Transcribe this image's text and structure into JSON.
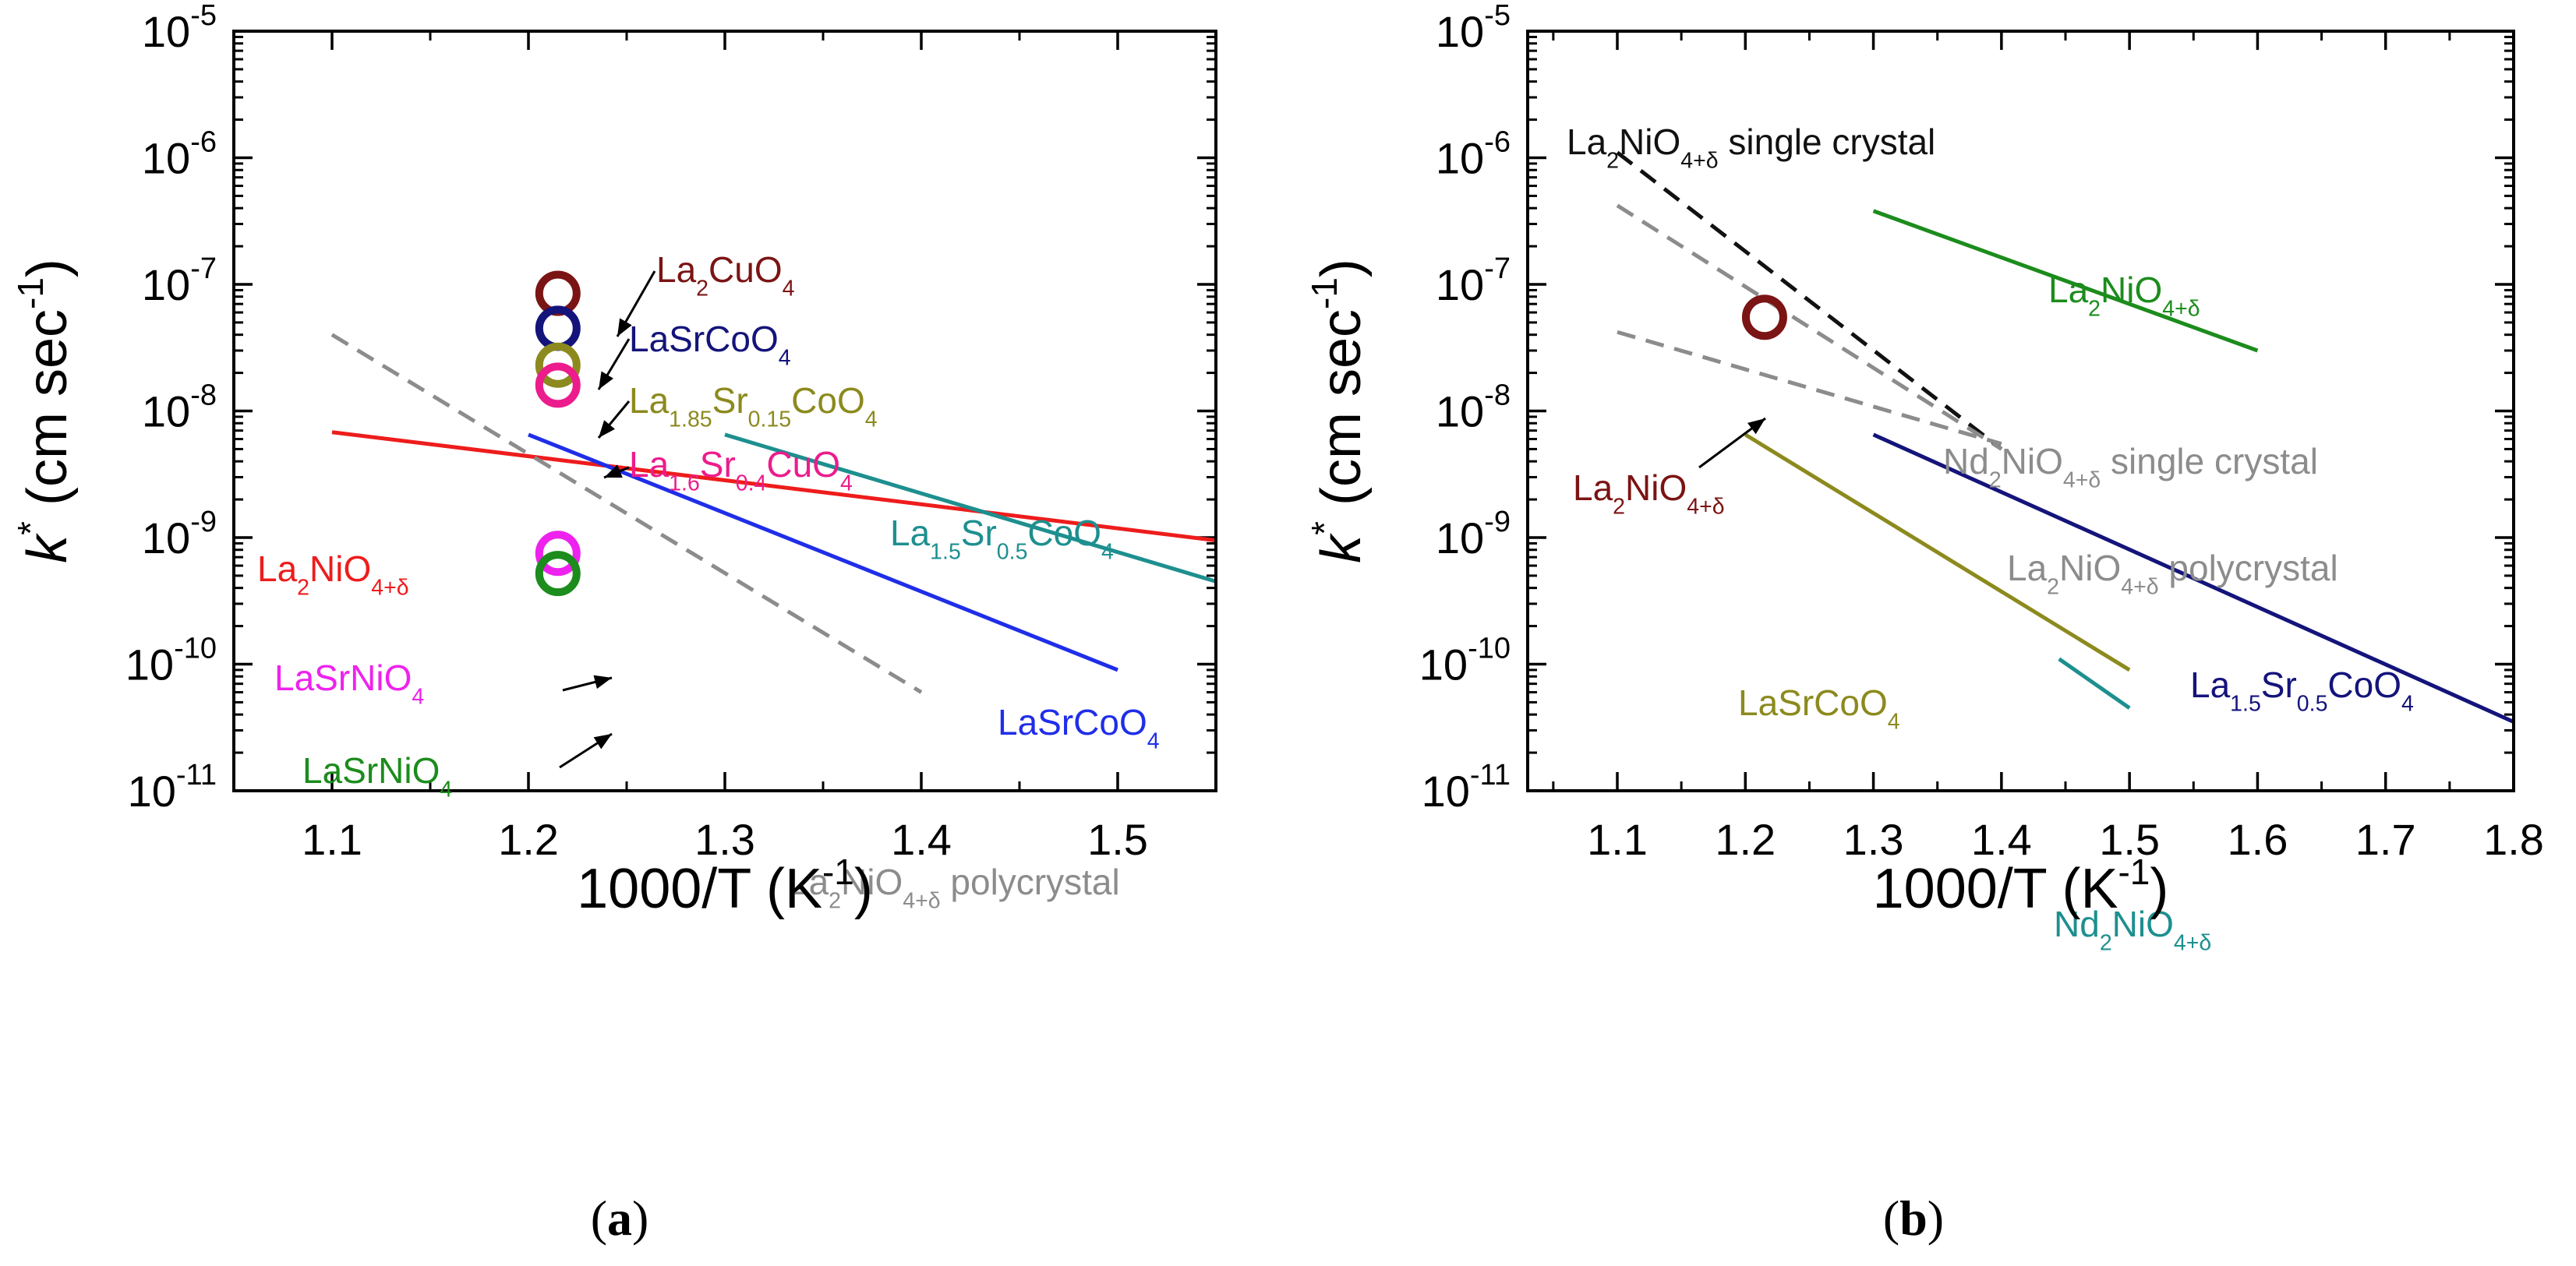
{
  "chart_data": [
    {
      "panel": "a",
      "type": "line",
      "caption": "(a)",
      "caption_open": "(",
      "caption_letter": "a",
      "caption_close": ")",
      "xlabel": "1000/T (K",
      "xlabel_exp": "-1",
      "xlabel_close": ")",
      "ylabel": "k",
      "ylabel_star": "*",
      "ylabel_unit": " (cm sec",
      "ylabel_exp": "-1",
      "ylabel_close": ")",
      "xlim": [
        1.05,
        1.55
      ],
      "ylim_log10": [
        -11,
        -5
      ],
      "xticks": [
        1.1,
        1.2,
        1.3,
        1.4,
        1.5
      ],
      "xtick_labels": [
        "1.1",
        "1.2",
        "1.3",
        "1.4",
        "1.5"
      ],
      "yticks_exp": [
        -11,
        -10,
        -9,
        -8,
        -7,
        -6,
        -5
      ],
      "ytick_base": "10",
      "ytick_exp_labels": [
        "-11",
        "-10",
        "-9",
        "-8",
        "-7",
        "-6",
        "-5"
      ],
      "lines": [
        {
          "name": "La2NiO4+δ (red)",
          "color": "#ee1c1c",
          "dash": false,
          "x": [
            1.1,
            1.55
          ],
          "y": [
            6.8e-09,
            9.5e-10
          ]
        },
        {
          "name": "La1.5Sr0.5CoO4",
          "color": "#1e8f8f",
          "dash": false,
          "x": [
            1.3,
            1.55
          ],
          "y": [
            6.5e-09,
            4.5e-10
          ]
        },
        {
          "name": "LaSrCoO4",
          "color": "#1f2ee8",
          "dash": false,
          "x": [
            1.2,
            1.5
          ],
          "y": [
            6.5e-09,
            9e-11
          ]
        },
        {
          "name": "La2NiO4+δ polycrystal",
          "color": "#8c8c8c",
          "dash": true,
          "x": [
            1.1,
            1.4
          ],
          "y": [
            4e-08,
            6e-11
          ]
        }
      ],
      "points": [
        {
          "name": "La2CuO4",
          "color": "#7b1414",
          "x": 1.215,
          "y": 8.5e-08
        },
        {
          "name": "LaSrCoO4",
          "color": "#14147b",
          "x": 1.215,
          "y": 4.5e-08
        },
        {
          "name": "La1.85Sr0.15CoO4",
          "color": "#8c8a1e",
          "x": 1.215,
          "y": 2.3e-08
        },
        {
          "name": "La1.6Sr0.4CuO4",
          "color": "#ec1c8c",
          "x": 1.215,
          "y": 1.6e-08
        },
        {
          "name": "LaSrNiO4 (magenta)",
          "color": "#ee22ee",
          "x": 1.215,
          "y": 7.5e-10
        },
        {
          "name": "LaSrNiO4 (green)",
          "color": "#1c8c1c",
          "x": 1.215,
          "y": 5.2e-10
        }
      ],
      "labels": [
        {
          "id": "la2cuo4",
          "color": "#7b1414",
          "parts": [
            [
              "La",
              0
            ],
            [
              "2",
              -1
            ],
            [
              "CuO",
              0
            ],
            [
              "4",
              -1
            ]
          ]
        },
        {
          "id": "lasrcoo4-pt",
          "color": "#14147b",
          "parts": [
            [
              "LaSrCoO",
              0
            ],
            [
              "4",
              -1
            ]
          ]
        },
        {
          "id": "la185",
          "color": "#8c8a1e",
          "parts": [
            [
              "La",
              0
            ],
            [
              "1.85",
              -1
            ],
            [
              "Sr",
              0
            ],
            [
              "0.15",
              -1
            ],
            [
              "CoO",
              0
            ],
            [
              "4",
              -1
            ]
          ]
        },
        {
          "id": "la16",
          "color": "#ec1c8c",
          "parts": [
            [
              "La",
              0
            ],
            [
              "1.6",
              -1
            ],
            [
              "Sr",
              0
            ],
            [
              "0.4",
              -1
            ],
            [
              "CuO",
              0
            ],
            [
              "4",
              -1
            ]
          ]
        },
        {
          "id": "la2nio4-red",
          "color": "#ee1c1c",
          "parts": [
            [
              "La",
              0
            ],
            [
              "2",
              -1
            ],
            [
              "NiO",
              0
            ],
            [
              "4+δ",
              -1
            ]
          ]
        },
        {
          "id": "la15",
          "color": "#1e8f8f",
          "parts": [
            [
              "La",
              0
            ],
            [
              "1.5",
              -1
            ],
            [
              "Sr",
              0
            ],
            [
              "0.5",
              -1
            ],
            [
              "CoO",
              0
            ],
            [
              "4",
              -1
            ]
          ]
        },
        {
          "id": "lasrnio4-mag",
          "color": "#ee22ee",
          "parts": [
            [
              "LaSrNiO",
              0
            ],
            [
              "4",
              -1
            ]
          ]
        },
        {
          "id": "lasrnio4-grn",
          "color": "#1c8c1c",
          "parts": [
            [
              "LaSrNiO",
              0
            ],
            [
              "4",
              -1
            ]
          ]
        },
        {
          "id": "lasrcoo4-line",
          "color": "#1f2ee8",
          "parts": [
            [
              "LaSrCoO",
              0
            ],
            [
              "4",
              -1
            ]
          ]
        },
        {
          "id": "la2nio4-poly",
          "color": "#8c8c8c",
          "parts": [
            [
              "La",
              0
            ],
            [
              "2",
              -1
            ],
            [
              "NiO",
              0
            ],
            [
              "4+δ",
              -1
            ],
            [
              " polycrystal",
              0
            ]
          ]
        }
      ]
    },
    {
      "panel": "b",
      "type": "line",
      "caption": "(b)",
      "caption_open": "(",
      "caption_letter": "b",
      "caption_close": ")",
      "xlabel": "1000/T (K",
      "xlabel_exp": "-1",
      "xlabel_close": ")",
      "ylabel": "k",
      "ylabel_star": "*",
      "ylabel_unit": " (cm sec",
      "ylabel_exp": "-1",
      "ylabel_close": ")",
      "xlim": [
        1.03,
        1.8
      ],
      "ylim_log10": [
        -11,
        -5
      ],
      "xticks": [
        1.1,
        1.2,
        1.3,
        1.4,
        1.5,
        1.6,
        1.7,
        1.8
      ],
      "xtick_labels": [
        "1.1",
        "1.2",
        "1.3",
        "1.4",
        "1.5",
        "1.6",
        "1.7",
        "1.8"
      ],
      "yticks_exp": [
        -11,
        -10,
        -9,
        -8,
        -7,
        -6,
        -5
      ],
      "ytick_base": "10",
      "ytick_exp_labels": [
        "-11",
        "-10",
        "-9",
        "-8",
        "-7",
        "-6",
        "-5"
      ],
      "lines": [
        {
          "name": "La2NiO4+δ single crystal",
          "color": "#111111",
          "dash": true,
          "x": [
            1.1,
            1.4
          ],
          "y": [
            1.1e-06,
            5e-09
          ]
        },
        {
          "name": "Nd2NiO4+δ single crystal",
          "color": "#8c8c8c",
          "dash": true,
          "x": [
            1.1,
            1.4
          ],
          "y": [
            4.2e-07,
            5e-09
          ]
        },
        {
          "name": "La2NiO4+δ polycrystal",
          "color": "#8c8c8c",
          "dash": true,
          "x": [
            1.1,
            1.4
          ],
          "y": [
            4.2e-08,
            5.5e-09
          ]
        },
        {
          "name": "La2NiO4+δ",
          "color": "#1c8c1c",
          "dash": false,
          "x": [
            1.3,
            1.6
          ],
          "y": [
            3.8e-07,
            3e-08
          ]
        },
        {
          "name": "LaSrCoO4",
          "color": "#8c8a1e",
          "dash": false,
          "x": [
            1.2,
            1.5
          ],
          "y": [
            6.5e-09,
            9e-11
          ]
        },
        {
          "name": "La1.5Sr0.5CoO4",
          "color": "#14147b",
          "dash": false,
          "x": [
            1.3,
            1.8
          ],
          "y": [
            6.5e-09,
            3.5e-11
          ]
        },
        {
          "name": "Nd2NiO4+δ",
          "color": "#1e8f8f",
          "dash": false,
          "x": [
            1.445,
            1.5
          ],
          "y": [
            1.1e-10,
            4.5e-11
          ]
        }
      ],
      "points": [
        {
          "name": "La2NiO4+δ",
          "color": "#7b1414",
          "x": 1.215,
          "y": 5.5e-08
        }
      ],
      "labels": [
        {
          "id": "la2nio4-sc",
          "color": "#111111",
          "parts": [
            [
              "La",
              0
            ],
            [
              "2",
              -1
            ],
            [
              "NiO",
              0
            ],
            [
              "4+δ",
              -1
            ],
            [
              " single crystal",
              0
            ]
          ]
        },
        {
          "id": "la2nio4-green",
          "color": "#1c8c1c",
          "parts": [
            [
              "La",
              0
            ],
            [
              "2",
              -1
            ],
            [
              "NiO",
              0
            ],
            [
              "4+δ",
              -1
            ]
          ]
        },
        {
          "id": "nd2-sc",
          "color": "#8c8c8c",
          "parts": [
            [
              "Nd",
              0
            ],
            [
              "2",
              -1
            ],
            [
              "NiO",
              0
            ],
            [
              "4+δ",
              -1
            ],
            [
              " single crystal",
              0
            ]
          ]
        },
        {
          "id": "la2nio4-pt",
          "color": "#7b1414",
          "parts": [
            [
              "La",
              0
            ],
            [
              "2",
              -1
            ],
            [
              "NiO",
              0
            ],
            [
              "4+δ",
              -1
            ]
          ]
        },
        {
          "id": "la2nio4-poly",
          "color": "#8c8c8c",
          "parts": [
            [
              "La",
              0
            ],
            [
              "2",
              -1
            ],
            [
              "NiO",
              0
            ],
            [
              "4+δ",
              -1
            ],
            [
              " polycrystal",
              0
            ]
          ]
        },
        {
          "id": "lasrcoo4",
          "color": "#8c8a1e",
          "parts": [
            [
              "LaSrCoO",
              0
            ],
            [
              "4",
              -1
            ]
          ]
        },
        {
          "id": "la15",
          "color": "#14147b",
          "parts": [
            [
              "La",
              0
            ],
            [
              "1.5",
              -1
            ],
            [
              "Sr",
              0
            ],
            [
              "0.5",
              -1
            ],
            [
              "CoO",
              0
            ],
            [
              "4",
              -1
            ]
          ]
        },
        {
          "id": "nd2nio4",
          "color": "#1e8f8f",
          "parts": [
            [
              "Nd",
              0
            ],
            [
              "2",
              -1
            ],
            [
              "NiO",
              0
            ],
            [
              "4+δ",
              -1
            ]
          ]
        }
      ]
    }
  ]
}
